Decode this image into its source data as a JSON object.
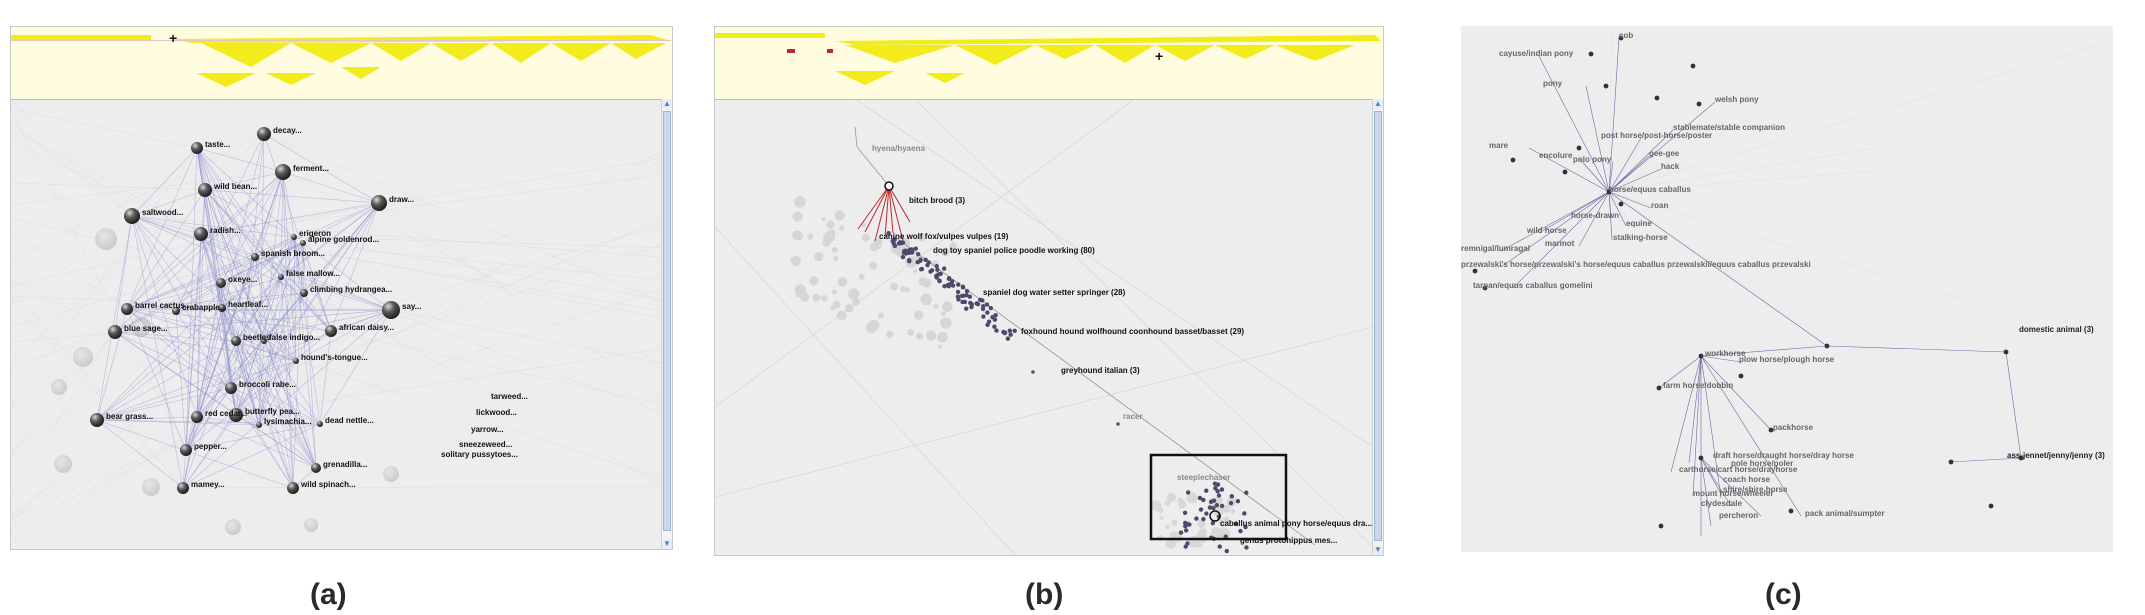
{
  "captions": {
    "a": "(a)",
    "b": "(b)",
    "c": "(c)"
  },
  "colors": {
    "tree_yellow": "#f2ec1c",
    "tree_bg": "#fffce0",
    "edge_purple": "#8f8fd0",
    "node_dark": "#3a3a3a",
    "highlight_red": "#c0282d",
    "panel_bg": "#ededed"
  },
  "panel_a": {
    "labels": [
      "decay...",
      "taste...",
      "ferment...",
      "wild bean...",
      "draw...",
      "saltwood...",
      "erigeron",
      "alpine goldenrod...",
      "radish...",
      "spanish broom...",
      "false mallow...",
      "oxeye...",
      "climbing hydrangea...",
      "barrel cactus...",
      "crabapple...",
      "heartleaf...",
      "say...",
      "blue sage...",
      "african daisy...",
      "beetles",
      "false indigo...",
      "hound's-tongue...",
      "tarweed...",
      "broccoli rabe...",
      "lickwood...",
      "bear grass...",
      "red cedar...",
      "butterfly pea...",
      "lysimachia...",
      "yarrow...",
      "dead nettle...",
      "sneezeweed...",
      "solitary pussytoes...",
      "pepper...",
      "grenadilla...",
      "mamey...",
      "wild spinach..."
    ]
  },
  "panel_b": {
    "labels": [
      "hyena/hyaena",
      "bitch brood (3)",
      "canine wolf fox/vulpes vulpes (19)",
      "dog toy spaniel police poodle working (80)",
      "spaniel dog water setter springer (28)",
      "foxhound hound wolfhound coonhound basset/basset (29)",
      "greyhound italian (3)",
      "racer",
      "steeplechaser",
      "caballus animal pony horse/equus dra...",
      "genus protohippus mes..."
    ]
  },
  "panel_c": {
    "labels": [
      "cob",
      "cayuse/indian pony",
      "pony",
      "welsh pony",
      "stablemate/stable companion",
      "mare",
      "post horse/post-horse/poster",
      "encolure",
      "polo pony",
      "gee-gee",
      "hack",
      "horse/equus caballus",
      "roan",
      "horse-drawn",
      "wild horse",
      "equine",
      "marmot",
      "stalking-horse",
      "remnigal/lumragal",
      "przewalski's horse/przewalski's horse/equus caballus przewalskii/equus caballus przevalski",
      "tarpan/equus caballus gomelini",
      "domestic animal (3)",
      "workhorse",
      "plow horse/plough horse",
      "farm horse/dobbin",
      "packhorse",
      "ass-jennet/jenny/jenny (3)",
      "draft horse/draught horse/dray horse",
      "pole horse/poler",
      "carthorse/cart horse/drayhorse",
      "coach horse",
      "shire/shire horse",
      "mount horse/wheeler",
      "clydesdale",
      "pack animal/sumpter",
      "percheron"
    ]
  }
}
